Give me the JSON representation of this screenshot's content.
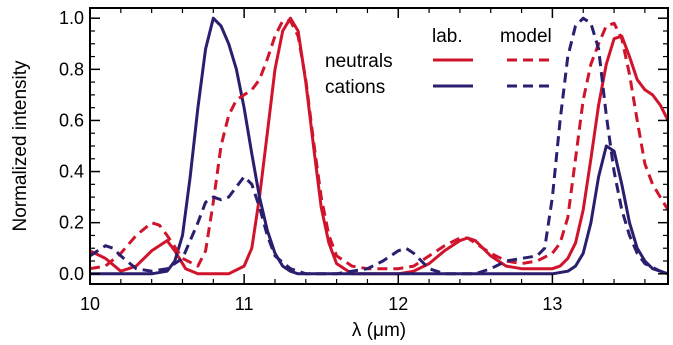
{
  "chart_data": {
    "type": "line",
    "xlabel": "λ (μm)",
    "ylabel": "Normalized intensity",
    "xlim": [
      10.0,
      13.75
    ],
    "ylim": [
      -0.04,
      1.04
    ],
    "x_ticks": [
      10,
      11,
      12,
      13
    ],
    "x_tick_labels": [
      "10",
      "11",
      "12",
      "13"
    ],
    "y_ticks": [
      0.0,
      0.2,
      0.4,
      0.6,
      0.8,
      1.0
    ],
    "y_tick_labels": [
      "0.0",
      "0.2",
      "0.4",
      "0.6",
      "0.8",
      "1.0"
    ],
    "grid": false,
    "legend": {
      "placement": "top-right",
      "column_headers": [
        "lab.",
        "model"
      ],
      "rows": [
        "neutrals",
        "cations"
      ]
    },
    "colors": {
      "neutrals": "#d0142c",
      "cations": "#2a1f6e",
      "axis": "#000000"
    },
    "series": [
      {
        "name": "neutrals",
        "kind": "lab.",
        "style": "solid",
        "x": [
          10.0,
          10.1,
          10.2,
          10.3,
          10.4,
          10.5,
          10.55,
          10.62,
          10.7,
          10.8,
          10.9,
          11.0,
          11.05,
          11.1,
          11.15,
          11.2,
          11.25,
          11.3,
          11.35,
          11.4,
          11.45,
          11.5,
          11.55,
          11.6,
          11.7,
          11.8,
          11.9,
          12.0,
          12.1,
          12.2,
          12.3,
          12.4,
          12.45,
          12.5,
          12.6,
          12.7,
          12.8,
          12.9,
          13.0,
          13.05,
          13.1,
          13.15,
          13.2,
          13.25,
          13.3,
          13.35,
          13.4,
          13.45,
          13.5,
          13.55,
          13.6,
          13.65,
          13.7,
          13.75
        ],
        "y": [
          0.09,
          0.06,
          0.01,
          0.03,
          0.09,
          0.13,
          0.09,
          0.02,
          0.0,
          0.0,
          0.0,
          0.03,
          0.1,
          0.3,
          0.55,
          0.8,
          0.95,
          1.0,
          0.95,
          0.75,
          0.5,
          0.26,
          0.12,
          0.04,
          0.0,
          0.0,
          0.0,
          0.0,
          0.01,
          0.04,
          0.09,
          0.13,
          0.14,
          0.13,
          0.07,
          0.03,
          0.02,
          0.02,
          0.02,
          0.03,
          0.06,
          0.12,
          0.25,
          0.45,
          0.66,
          0.82,
          0.92,
          0.93,
          0.85,
          0.76,
          0.72,
          0.7,
          0.66,
          0.6
        ]
      },
      {
        "name": "neutrals",
        "kind": "model",
        "style": "dashed",
        "x": [
          10.0,
          10.1,
          10.2,
          10.3,
          10.4,
          10.45,
          10.5,
          10.6,
          10.7,
          10.75,
          10.8,
          10.85,
          10.9,
          10.95,
          11.0,
          11.05,
          11.1,
          11.15,
          11.2,
          11.25,
          11.3,
          11.35,
          11.4,
          11.45,
          11.5,
          11.55,
          11.6,
          11.7,
          11.8,
          11.9,
          12.0,
          12.1,
          12.2,
          12.3,
          12.4,
          12.45,
          12.5,
          12.6,
          12.7,
          12.8,
          12.9,
          13.0,
          13.05,
          13.1,
          13.15,
          13.2,
          13.25,
          13.3,
          13.35,
          13.4,
          13.45,
          13.5,
          13.55,
          13.6,
          13.65,
          13.7,
          13.75
        ],
        "y": [
          0.02,
          0.03,
          0.08,
          0.15,
          0.2,
          0.19,
          0.15,
          0.06,
          0.03,
          0.09,
          0.28,
          0.5,
          0.62,
          0.68,
          0.7,
          0.72,
          0.76,
          0.84,
          0.93,
          0.99,
          0.99,
          0.93,
          0.76,
          0.52,
          0.3,
          0.15,
          0.07,
          0.03,
          0.02,
          0.02,
          0.02,
          0.03,
          0.07,
          0.11,
          0.14,
          0.14,
          0.12,
          0.08,
          0.05,
          0.04,
          0.05,
          0.08,
          0.12,
          0.22,
          0.45,
          0.68,
          0.82,
          0.9,
          0.97,
          0.98,
          0.92,
          0.78,
          0.6,
          0.43,
          0.35,
          0.3,
          0.25
        ]
      },
      {
        "name": "cations",
        "kind": "lab.",
        "style": "solid",
        "x": [
          10.0,
          10.1,
          10.2,
          10.3,
          10.4,
          10.5,
          10.55,
          10.6,
          10.65,
          10.7,
          10.75,
          10.8,
          10.85,
          10.9,
          10.95,
          11.0,
          11.05,
          11.1,
          11.15,
          11.2,
          11.25,
          11.3,
          11.35,
          11.4,
          11.5,
          11.6,
          11.8,
          12.0,
          12.2,
          12.4,
          12.6,
          12.8,
          13.0,
          13.1,
          13.15,
          13.2,
          13.25,
          13.3,
          13.35,
          13.4,
          13.45,
          13.5,
          13.55,
          13.6,
          13.65,
          13.7,
          13.75
        ],
        "y": [
          0.0,
          0.0,
          0.0,
          0.0,
          0.0,
          0.01,
          0.05,
          0.15,
          0.38,
          0.65,
          0.88,
          1.0,
          0.97,
          0.9,
          0.8,
          0.65,
          0.47,
          0.3,
          0.17,
          0.08,
          0.03,
          0.01,
          0.0,
          0.0,
          0.0,
          0.0,
          0.0,
          0.0,
          0.0,
          0.0,
          0.0,
          0.0,
          0.0,
          0.01,
          0.03,
          0.08,
          0.2,
          0.38,
          0.5,
          0.48,
          0.35,
          0.2,
          0.1,
          0.05,
          0.02,
          0.01,
          0.0
        ]
      },
      {
        "name": "cations",
        "kind": "model",
        "style": "dashed",
        "x": [
          10.0,
          10.05,
          10.1,
          10.15,
          10.2,
          10.3,
          10.4,
          10.5,
          10.6,
          10.7,
          10.75,
          10.8,
          10.85,
          10.9,
          10.95,
          11.0,
          11.05,
          11.1,
          11.15,
          11.2,
          11.3,
          11.4,
          11.5,
          11.6,
          11.7,
          11.8,
          11.9,
          12.0,
          12.05,
          12.1,
          12.15,
          12.2,
          12.3,
          12.4,
          12.5,
          12.6,
          12.7,
          12.8,
          12.9,
          12.95,
          13.0,
          13.05,
          13.1,
          13.15,
          13.2,
          13.25,
          13.3,
          13.35,
          13.4,
          13.45,
          13.5,
          13.55,
          13.6,
          13.7,
          13.75
        ],
        "y": [
          0.07,
          0.09,
          0.11,
          0.1,
          0.07,
          0.02,
          0.01,
          0.02,
          0.06,
          0.2,
          0.28,
          0.3,
          0.29,
          0.3,
          0.34,
          0.38,
          0.35,
          0.26,
          0.15,
          0.07,
          0.02,
          0.0,
          0.0,
          0.0,
          0.01,
          0.02,
          0.05,
          0.09,
          0.1,
          0.08,
          0.05,
          0.02,
          0.0,
          0.0,
          0.0,
          0.02,
          0.05,
          0.06,
          0.07,
          0.1,
          0.3,
          0.6,
          0.85,
          0.97,
          1.0,
          0.98,
          0.88,
          0.62,
          0.4,
          0.25,
          0.15,
          0.08,
          0.04,
          0.01,
          0.0
        ]
      }
    ]
  }
}
